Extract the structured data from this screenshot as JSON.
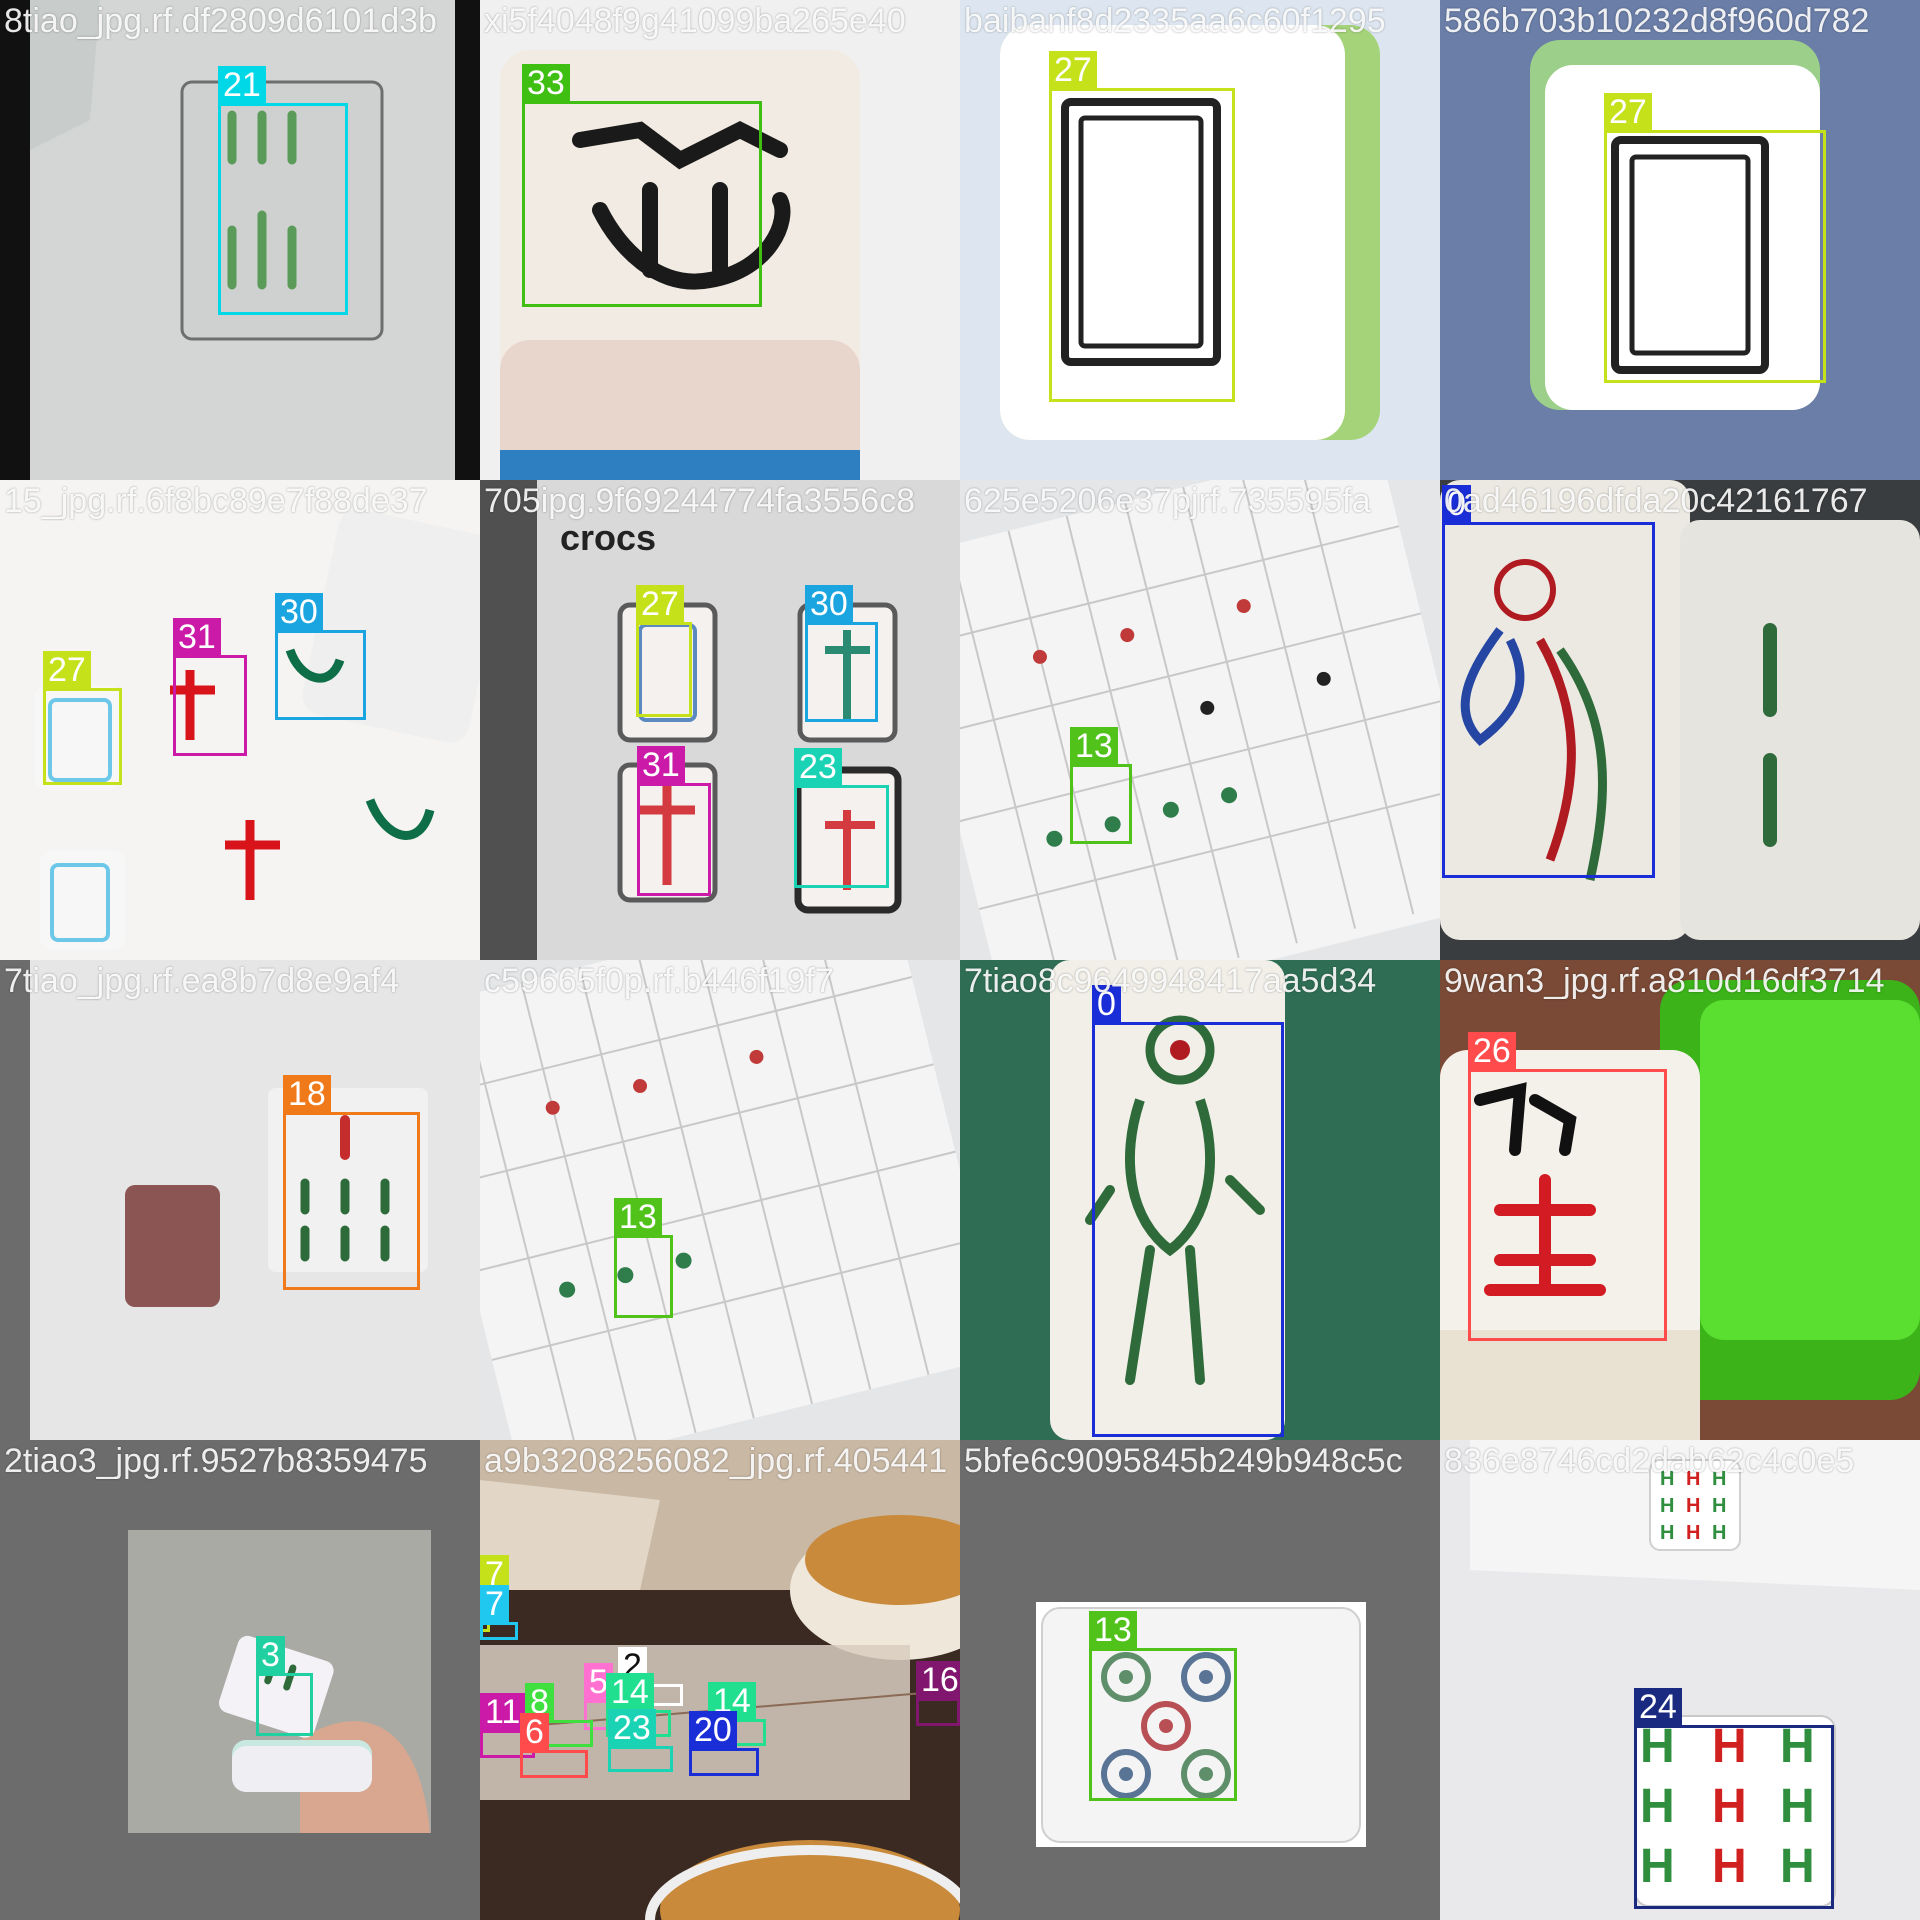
{
  "mosaic": {
    "tiles": [
      {
        "file": "8tiao_jpg.rf.df2809d6101d3b",
        "boxes": [
          {
            "label": "21",
            "color": "#00d8e8"
          }
        ]
      },
      {
        "file": "xi5f4048f9g41099ba265e40",
        "boxes": [
          {
            "label": "33",
            "color": "#3fbf12"
          }
        ]
      },
      {
        "file": "baibanf8d2335aa6c60f1295",
        "boxes": [
          {
            "label": "27",
            "color": "#c4e11a"
          }
        ]
      },
      {
        "file": "586b703b10232d8f960d782",
        "boxes": [
          {
            "label": "27",
            "color": "#c4e11a"
          }
        ]
      },
      {
        "file": "15_jpg.rf.6f8bc89e7f88de37",
        "boxes": [
          {
            "label": "27",
            "color": "#c4e11a"
          },
          {
            "label": "31",
            "color": "#cc1aa8"
          },
          {
            "label": "30",
            "color": "#1aa4e0"
          }
        ]
      },
      {
        "file": "705ipg.9f69244774fa3556c8",
        "boxes": [
          {
            "label": "27",
            "color": "#c4e11a"
          },
          {
            "label": "30",
            "color": "#1aa4e0"
          },
          {
            "label": "31",
            "color": "#cc1aa8"
          },
          {
            "label": "23",
            "color": "#1ad3b4"
          }
        ]
      },
      {
        "file": "625e5206e37pjrf.735595fa",
        "boxes": [
          {
            "label": "13",
            "color": "#50c21a"
          }
        ]
      },
      {
        "file": "0ad46196dfda20c42161767",
        "boxes": [
          {
            "label": "0",
            "color": "#1a2ed8"
          }
        ]
      },
      {
        "file": "7tiao_jpg.rf.ea8b7d8e9af4",
        "boxes": [
          {
            "label": "18",
            "color": "#f07a1a"
          }
        ]
      },
      {
        "file": "c59665f0p.rf.b446f19f7",
        "boxes": [
          {
            "label": "13",
            "color": "#50c21a"
          }
        ]
      },
      {
        "file": "7tiao8c9649948417aa5d34",
        "boxes": [
          {
            "label": "0",
            "color": "#1a2ed8"
          }
        ]
      },
      {
        "file": "9wan3_jpg.rf.a810d16df3714",
        "boxes": [
          {
            "label": "26",
            "color": "#ff4b4b"
          }
        ]
      },
      {
        "file": "2tiao3_jpg.rf.9527b8359475",
        "boxes": [
          {
            "label": "3",
            "color": "#20d0a0"
          }
        ]
      },
      {
        "file": "a9b3208256082_jpg.rf.405441",
        "boxes": [
          {
            "label": "7",
            "color": "#c4e11a"
          },
          {
            "label": "7",
            "color": "#20c8f0"
          },
          {
            "label": "2",
            "color": "#ffffff"
          },
          {
            "label": "5",
            "color": "#ff70d0"
          },
          {
            "label": "8",
            "color": "#3fdf3f"
          },
          {
            "label": "14",
            "color": "#20e090"
          },
          {
            "label": "14",
            "color": "#20e090"
          },
          {
            "label": "11",
            "color": "#cc1aa8"
          },
          {
            "label": "6",
            "color": "#ff4b4b"
          },
          {
            "label": "23",
            "color": "#1ad3b4"
          },
          {
            "label": "20",
            "color": "#1a2ed8"
          },
          {
            "label": "16",
            "color": "#80166e"
          }
        ]
      },
      {
        "file": "5bfe6c9095845b249b948c5c",
        "boxes": [
          {
            "label": "13",
            "color": "#50c21a"
          }
        ]
      },
      {
        "file": "836e8746cd2dab62c4c0e5",
        "boxes": [
          {
            "label": "24",
            "color": "#1a2a80"
          }
        ]
      }
    ]
  }
}
